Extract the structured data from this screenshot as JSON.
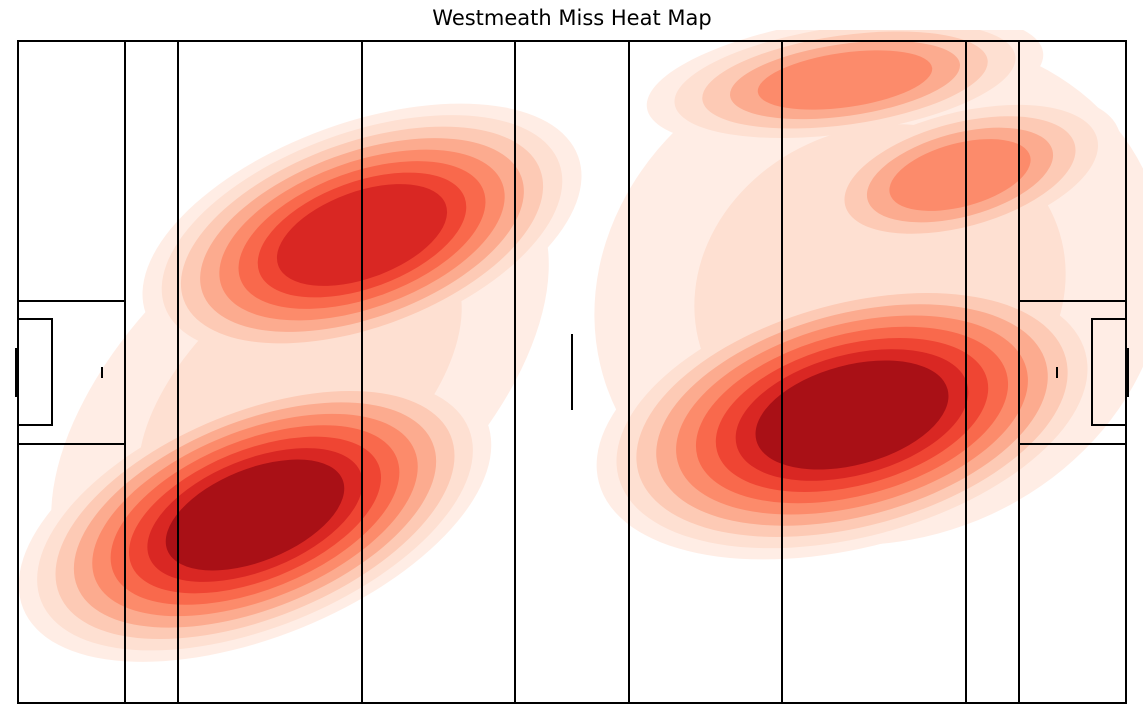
{
  "chart_data": {
    "type": "kde",
    "title": "Westmeath Miss Heat Map"
  }
}
